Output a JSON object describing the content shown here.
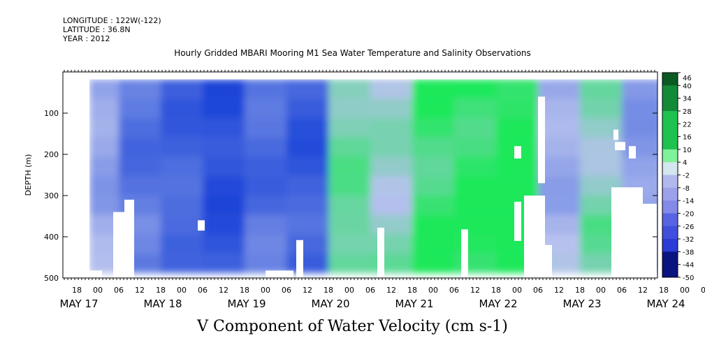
{
  "header": {
    "longitude": "LONGITUDE : 122W(-122)",
    "latitude": "LATITUDE : 36.8N",
    "year": "YEAR : 2012"
  },
  "chart_data": {
    "type": "heatmap",
    "title": "Hourly Gridded MBARI Mooring M1 Sea Water Temperature and Salinity Observations",
    "xlabel": "V Component of Water Velocity (cm s-1)",
    "ylabel": "DEPTH (m)",
    "ylim": [
      500,
      0
    ],
    "yticks": [
      100,
      200,
      300,
      400,
      500
    ],
    "x_hour_ticks": [
      "18",
      "00",
      "06",
      "12",
      "18",
      "00",
      "06",
      "12",
      "18",
      "00",
      "06",
      "12",
      "18",
      "00",
      "06",
      "12",
      "18",
      "00",
      "06",
      "12",
      "18",
      "00",
      "06",
      "12",
      "18",
      "00",
      "06",
      "12",
      "18",
      "00",
      "06",
      "12"
    ],
    "x_day_labels": [
      "MAY 17",
      "MAY 18",
      "MAY 19",
      "MAY 20",
      "MAY 21",
      "MAY 22",
      "MAY 23",
      "MAY 24"
    ],
    "colorbar_levels": [
      46,
      40,
      34,
      28,
      22,
      16,
      10,
      4,
      -2,
      -8,
      -14,
      -20,
      -26,
      -32,
      -38,
      -44,
      -50
    ],
    "colors": {
      "negative": "#1a44d8",
      "neutral": "#b8c2ee",
      "positive": "#1ee85a"
    },
    "v_profile": [
      {
        "day": "May 17 18h",
        "v": -8
      },
      {
        "day": "May 18 06h",
        "v": -20
      },
      {
        "day": "May 18 18h",
        "v": -24
      },
      {
        "day": "May 19 06h",
        "v": -30
      },
      {
        "day": "May 19 18h",
        "v": -22
      },
      {
        "day": "May 20 06h",
        "v": -26
      },
      {
        "day": "May 20 18h",
        "v": 10
      },
      {
        "day": "May 21 06h",
        "v": 4
      },
      {
        "day": "May 21 18h",
        "v": 16
      },
      {
        "day": "May 22 06h",
        "v": 18
      },
      {
        "day": "May 22 18h",
        "v": 22
      },
      {
        "day": "May 23 06h",
        "v": -6
      },
      {
        "day": "May 23 18h",
        "v": 6
      },
      {
        "day": "May 24 06h",
        "v": -10
      }
    ]
  }
}
